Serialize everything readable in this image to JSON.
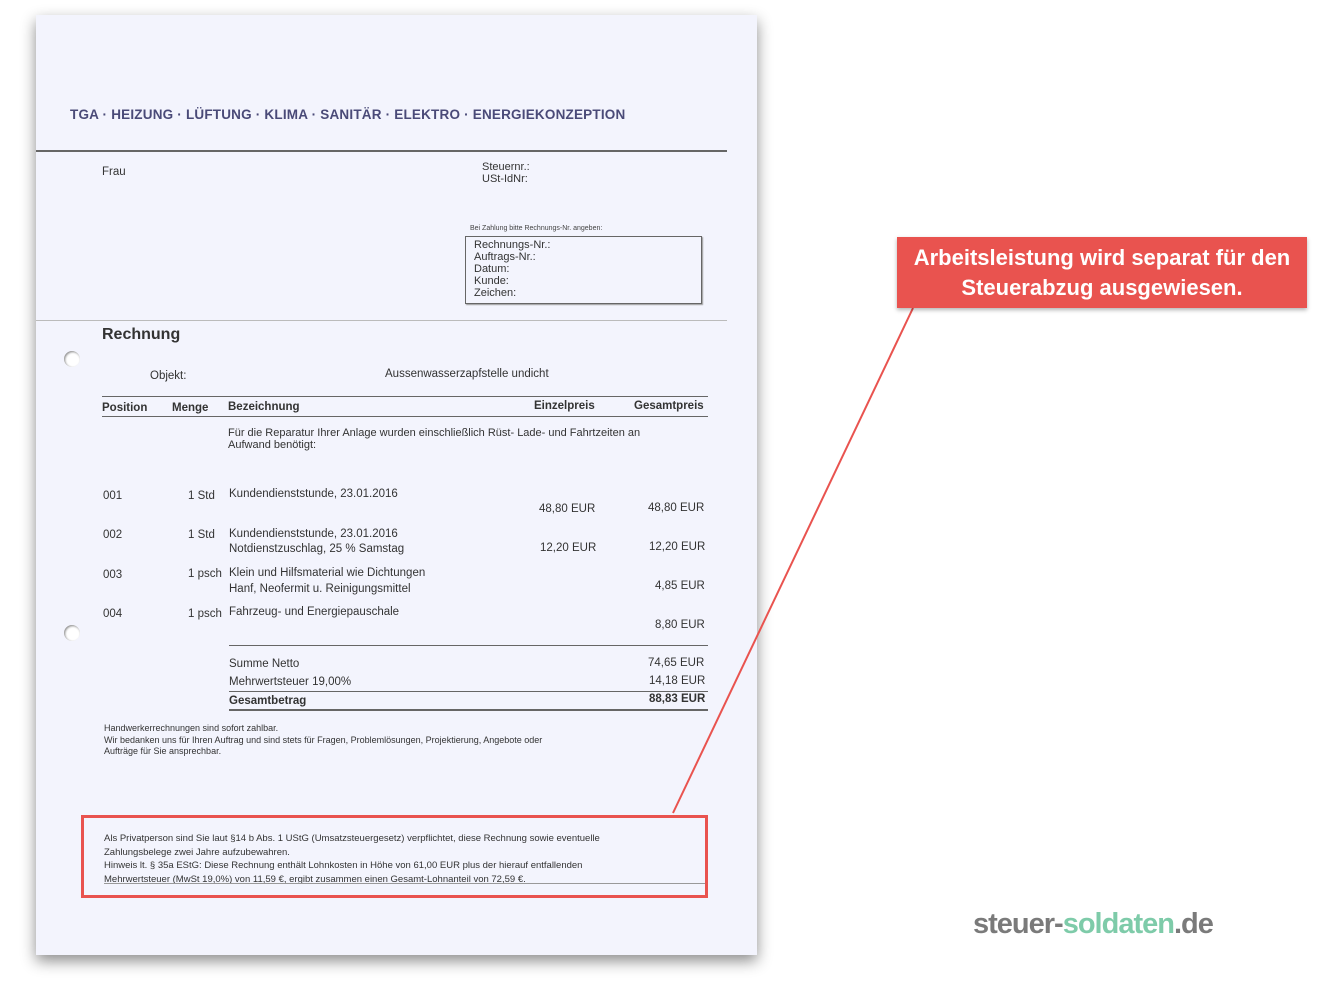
{
  "invoice": {
    "header": "TGA · HEIZUNG · LÜFTUNG · KLIMA · SANITÄR · ELEKTRO · ENERGIEKONZEPTION",
    "salutation": "Frau",
    "tax_labels": [
      "Steuernr.:",
      "USt-IdNr:"
    ],
    "payment_note": "Bei Zahlung bitte Rechnungs-Nr. angeben:",
    "ref_box": [
      "Rechnungs-Nr.:",
      "Auftrags-Nr.:",
      "Datum:",
      "Kunde:",
      "Zeichen:"
    ],
    "title": "Rechnung",
    "object_label": "Objekt:",
    "object_value": "Aussenwasserzapfstelle undicht",
    "columns": [
      "Position",
      "Menge",
      "Bezeichnung",
      "Einzelpreis",
      "Gesamtpreis"
    ],
    "intro": [
      "Für die Reparatur Ihrer Anlage wurden einschließlich Rüst- Lade- und Fahrtzeiten an",
      "Aufwand benötigt:"
    ],
    "rows": [
      {
        "pos": "001",
        "qty": "1 Std",
        "desc": [
          "Kundendienststunde, 23.01.2016"
        ],
        "unit": "48,80 EUR",
        "total": "48,80 EUR"
      },
      {
        "pos": "002",
        "qty": "1 Std",
        "desc": [
          "Kundendienststunde, 23.01.2016",
          "Notdienstzuschlag, 25 % Samstag"
        ],
        "unit": "12,20 EUR",
        "total": "12,20 EUR"
      },
      {
        "pos": "003",
        "qty": "1 psch",
        "desc": [
          "Klein und Hilfsmaterial wie Dichtungen",
          "Hanf, Neofermit u. Reinigungsmittel"
        ],
        "unit": "",
        "total": "4,85 EUR"
      },
      {
        "pos": "004",
        "qty": "1 psch",
        "desc": [
          "Fahrzeug- und Energiepauschale"
        ],
        "unit": "",
        "total": "8,80 EUR"
      }
    ],
    "totals": [
      {
        "label": "Summe Netto",
        "value": "74,65 EUR"
      },
      {
        "label": "Mehrwertsteuer  19,00%",
        "value": "14,18 EUR"
      },
      {
        "label": "Gesamtbetrag",
        "value": "88,83 EUR"
      }
    ],
    "footer": [
      "Handwerkerrechnungen sind sofort zahlbar.",
      "Wir bedanken uns für Ihren Auftrag und sind stets für Fragen, Problemlösungen, Projektierung, Angebote oder",
      "Aufträge für Sie ansprechbar."
    ],
    "notice": [
      "Als Privatperson sind Sie laut §14 b Abs. 1 UStG (Umsatzsteuergesetz) verpflichtet, diese Rechnung sowie eventuelle",
      "Zahlungsbelege zwei Jahre aufzubewahren.",
      "Hinweis lt. § 35a EStG: Diese Rechnung enthält Lohnkosten in Höhe von 61,00 EUR plus der hierauf entfallenden",
      "Mehrwertsteuer (MwSt 19,0%) von 11,59 €, ergibt zusammen einen Gesamt-Lohnanteil von 72,59 €."
    ]
  },
  "annotation": {
    "callout": "Arbeitsleistung wird separat für den Steuerabzug ausgewiesen.",
    "color": "#e9534f"
  },
  "logo": {
    "part1": "steuer-",
    "part2": "soldaten",
    "part3": ".de"
  }
}
